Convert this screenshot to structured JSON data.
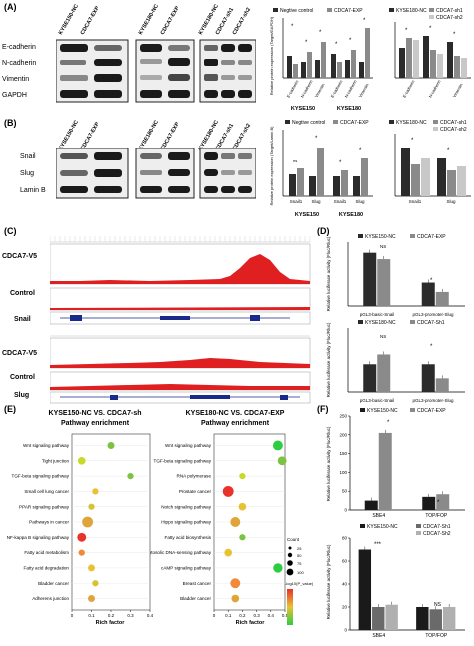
{
  "panels": {
    "A": "(A)",
    "B": "(B)",
    "C": "(C)",
    "D": "(D)",
    "E": "(E)",
    "F": "(F)"
  },
  "panelA": {
    "columns": [
      "KYSE150-NC",
      "CDCA7-EXP",
      "KYSE180-NC",
      "CDCA7-EXP",
      "KYSE180-NC",
      "CDCA7-sh1",
      "CDCA7-sh2"
    ],
    "rows": [
      "E-cadherin",
      "N-cadherin",
      "Vimentin",
      "GAPDH"
    ],
    "chart1": {
      "legend": [
        "Negtive control",
        "CDCA7-EXP"
      ],
      "ylabel": "Relative protein expression (Target/GAPDH)",
      "groups": [
        "KYSE150",
        "KYSE180"
      ],
      "categories": [
        "E-cadherin",
        "N-cadherin",
        "Vimentin",
        "E-cadherin",
        "N-cadherin",
        "Vimentin"
      ]
    },
    "chart2": {
      "legend": [
        "KYSE180-NC",
        "CDCA7-sh1",
        "CDCA7-sh2"
      ],
      "categories": [
        "E-cadherin",
        "N-cadherin",
        "Vimentin"
      ]
    }
  },
  "panelB": {
    "columns": [
      "KYSE150-NC",
      "CDCA7-EXP",
      "KYSE180-NC",
      "CDCA7-EXP",
      "KYSE180-NC",
      "CDCA7-sh1",
      "CDCA7-sh2"
    ],
    "rows": [
      "Snail",
      "Slug",
      "Lamin B"
    ],
    "chart1": {
      "legend": [
        "Negtive control",
        "CDCA7-EXP"
      ],
      "ylabel": "Relative protein expression (Target/Lamin B)",
      "groups": [
        "KYSE150",
        "KYSE180"
      ],
      "categories": [
        "Snail1",
        "Slug",
        "Snail1",
        "Slug"
      ]
    },
    "chart2": {
      "legend": [
        "KYSE180-NC",
        "CDCA7-sh1",
        "CDCA7-sh2"
      ],
      "categories": [
        "Snail1",
        "Slug"
      ]
    }
  },
  "panelC": {
    "tracks": [
      {
        "label": "CDCA7-V5"
      },
      {
        "label": "Control"
      },
      {
        "label": "Snail"
      },
      {
        "label": "CDCA7-V5"
      },
      {
        "label": "Control"
      },
      {
        "label": "Slug"
      }
    ]
  },
  "chart_data": [
    {
      "type": "bar",
      "id": "D1",
      "series": [
        {
          "name": "KYSE150-NC",
          "values": [
            12.5,
            5.5
          ],
          "color": "#2b2b2b"
        },
        {
          "name": "CDCA7-EXP",
          "values": [
            11.0,
            3.3
          ],
          "color": "#8a8a8a"
        }
      ],
      "categories": [
        "pGL3-basic-Snail",
        "pGL3-promoter-Slug"
      ],
      "ylabel": "Relative luciferase activity (Fluc/Rluc)",
      "ylim": [
        0,
        15
      ],
      "annotations": [
        "NS",
        "*"
      ]
    },
    {
      "type": "bar",
      "id": "D2",
      "series": [
        {
          "name": "KYSE180-NC",
          "values": [
            6.5,
            6.5
          ],
          "color": "#2b2b2b"
        },
        {
          "name": "CDCA7-Sh1",
          "values": [
            8.8,
            3.2
          ],
          "color": "#8a8a8a"
        }
      ],
      "categories": [
        "pGL3-basic-Snail",
        "pGL3-promoter-Slug"
      ],
      "ylabel": "Relative luciferase activity (Fluc/Rluc)",
      "ylim": [
        0,
        15
      ],
      "annotations": [
        "NS",
        "*"
      ]
    },
    {
      "type": "scatter",
      "id": "E1",
      "title": "KYSE150-NC VS. CDCA7-sh",
      "subtitle": "Pathway enrichment",
      "xlabel": "Rich factor",
      "categories": [
        "Wnt signaling pathway",
        "Tight junction",
        "TGF-beta signaling pathway",
        "Small cell lung cancer",
        "PPAR signaling pathway",
        "Pathways in cancer",
        "NF-kappa B signaling pathway",
        "Fatty acid metabolism",
        "Fatty acid degradation",
        "Bladder cancer",
        "Adherens junction"
      ],
      "x": [
        0.2,
        0.05,
        0.3,
        0.12,
        0.1,
        0.08,
        0.05,
        0.05,
        0.1,
        0.12,
        0.1
      ],
      "size": [
        25,
        30,
        20,
        20,
        20,
        60,
        40,
        20,
        25,
        20,
        25
      ],
      "color": [
        "#7dc242",
        "#c8d92a",
        "#7dc242",
        "#e8c233",
        "#d4c432",
        "#e0a53a",
        "#e8322a",
        "#f08a3a",
        "#e8c233",
        "#d4c432",
        "#e0a53a"
      ],
      "xticks": [
        "0",
        "0.1",
        "0.2",
        "0.3",
        "0.4"
      ]
    },
    {
      "type": "scatter",
      "id": "E2",
      "title": "KYSE180-NC VS. CDCA7-EXP",
      "subtitle": "Pathway enrichment",
      "xlabel": "Rich factor",
      "categories": [
        "Wnt signaling pathway",
        "TGF-beta signaling pathway",
        "RNA polymerase",
        "Prostate cancer",
        "Notch signaling pathway",
        "Hippo signaling pathway",
        "Fatty acid biosynthesis",
        "Cytosolic DNA-sensing pathway",
        "cAMP signaling pathway",
        "Breast cancer",
        "Bladder cancer"
      ],
      "x": [
        0.45,
        0.48,
        0.2,
        0.1,
        0.2,
        0.15,
        0.2,
        0.1,
        0.45,
        0.15,
        0.15
      ],
      "size": [
        50,
        40,
        20,
        60,
        30,
        50,
        20,
        30,
        45,
        50,
        30
      ],
      "color": [
        "#2ecc40",
        "#7dc242",
        "#c8d92a",
        "#e8322a",
        "#e8c233",
        "#e0a53a",
        "#7dc242",
        "#e8c233",
        "#2ecc40",
        "#f08a3a",
        "#e0a53a"
      ],
      "xticks": [
        "0",
        "0.1",
        "0.2",
        "0.3",
        "0.4",
        "0.5"
      ],
      "legend": {
        "count_title": "Count",
        "counts": [
          "25",
          "50",
          "75",
          "100"
        ],
        "color_title": "-log10(P_value)"
      }
    },
    {
      "type": "bar",
      "id": "F1",
      "series": [
        {
          "name": "KYSE150-NC",
          "values": [
            25,
            35
          ],
          "color": "#1a1a1a"
        },
        {
          "name": "CDCA7-EXP",
          "values": [
            205,
            42
          ],
          "color": "#8a8a8a"
        }
      ],
      "categories": [
        "SBE4",
        "TOP/FOP"
      ],
      "ylabel": "Relative luciferase activity (Fluc/Rluc)",
      "ylim": [
        0,
        250
      ],
      "yticks": [
        "0",
        "50",
        "100",
        "150",
        "200",
        "250"
      ],
      "annotations": [
        "*",
        "*"
      ]
    },
    {
      "type": "bar",
      "id": "F2",
      "series": [
        {
          "name": "KYSE150-NC",
          "values": [
            70,
            20
          ],
          "color": "#1a1a1a"
        },
        {
          "name": "CDCA7-Sh1",
          "values": [
            20,
            18
          ],
          "color": "#6a6a6a"
        },
        {
          "name": "CDCA7-Sh2",
          "values": [
            22,
            20
          ],
          "color": "#b0b0b0"
        }
      ],
      "categories": [
        "SBE4",
        "TOP/FOP"
      ],
      "ylabel": "Relative luciferase activity (Fluc/Rluc)",
      "ylim": [
        0,
        80
      ],
      "yticks": [
        "0",
        "20",
        "40",
        "60",
        "80"
      ],
      "annotations": [
        "***",
        "NS"
      ]
    }
  ]
}
